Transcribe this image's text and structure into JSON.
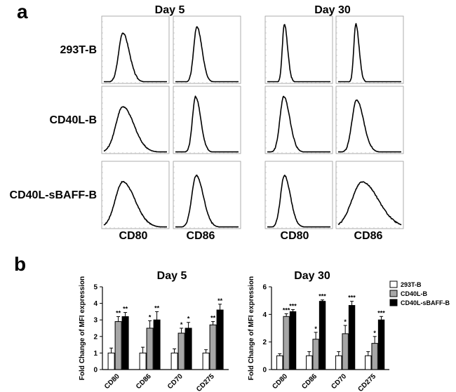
{
  "panels": {
    "a": "a",
    "b": "b"
  },
  "colors": {
    "293T-B": "#ffffff",
    "CD40L-B": "#a6a6a6",
    "CD40L-sBAFF-B": "#000000"
  },
  "chart_data": [
    {
      "type": "histogram-grid",
      "panel": "a",
      "column_groups": [
        "Day 5",
        "Day 30"
      ],
      "rows": [
        "293T-B",
        "CD40L-B",
        "CD40L-sBAFF-B"
      ],
      "columns": [
        "CD80",
        "CD86",
        "CD80",
        "CD86"
      ],
      "profiles": [
        [
          [
            0.3,
            0.065,
            0.78
          ],
          [
            0.34,
            0.05,
            0.88
          ],
          [
            0.27,
            0.032,
            0.92
          ],
          [
            0.28,
            0.032,
            0.92
          ]
        ],
        [
          [
            0.3,
            0.11,
            0.72
          ],
          [
            0.32,
            0.05,
            0.88
          ],
          [
            0.26,
            0.06,
            0.88
          ],
          [
            0.29,
            0.07,
            0.83
          ]
        ],
        [
          [
            0.3,
            0.12,
            0.72
          ],
          [
            0.33,
            0.07,
            0.82
          ],
          [
            0.27,
            0.06,
            0.82
          ],
          [
            0.38,
            0.16,
            0.72
          ]
        ]
      ]
    },
    {
      "type": "bar",
      "panel": "b",
      "title": "Day 5",
      "ylabel": "Fold Change of MFI expression",
      "categories": [
        "CD80",
        "CD86",
        "CD70",
        "CD275"
      ],
      "ylim": [
        0,
        5
      ],
      "yticks": [
        0,
        1,
        2,
        3,
        4,
        5
      ],
      "series": [
        {
          "name": "293T-B",
          "values": [
            1.0,
            1.0,
            1.0,
            1.0
          ],
          "errors": [
            0.3,
            0.35,
            0.25,
            0.2
          ]
        },
        {
          "name": "CD40L-B",
          "values": [
            2.9,
            2.5,
            2.2,
            2.7
          ],
          "errors": [
            0.3,
            0.45,
            0.3,
            0.2
          ]
        },
        {
          "name": "CD40L-sBAFF-B",
          "values": [
            3.2,
            3.0,
            2.5,
            3.6
          ],
          "errors": [
            0.25,
            0.5,
            0.35,
            0.35
          ]
        }
      ],
      "significance": [
        [
          "",
          "**",
          "**"
        ],
        [
          "",
          "*",
          "**"
        ],
        [
          "",
          "*",
          "*"
        ],
        [
          "",
          "**",
          "**"
        ]
      ]
    },
    {
      "type": "bar",
      "panel": "b",
      "title": "Day 30",
      "ylabel": "Fold Change of MFI expression",
      "categories": [
        "CD80",
        "CD86",
        "CD70",
        "CD275"
      ],
      "ylim": [
        0,
        6
      ],
      "yticks": [
        0,
        2,
        4,
        6
      ],
      "series": [
        {
          "name": "293T-B",
          "values": [
            1.0,
            1.0,
            1.0,
            1.0
          ],
          "errors": [
            0.15,
            0.3,
            0.3,
            0.3
          ]
        },
        {
          "name": "CD40L-B",
          "values": [
            3.85,
            2.2,
            2.6,
            1.9
          ],
          "errors": [
            0.2,
            0.5,
            0.6,
            0.5
          ]
        },
        {
          "name": "CD40L-sBAFF-B",
          "values": [
            4.2,
            4.95,
            4.65,
            3.6
          ],
          "errors": [
            0.15,
            0.1,
            0.3,
            0.25
          ]
        }
      ],
      "significance": [
        [
          "",
          "***",
          "***"
        ],
        [
          "",
          "*",
          "***"
        ],
        [
          "",
          "*",
          "***"
        ],
        [
          "",
          "*",
          "***"
        ]
      ]
    }
  ]
}
